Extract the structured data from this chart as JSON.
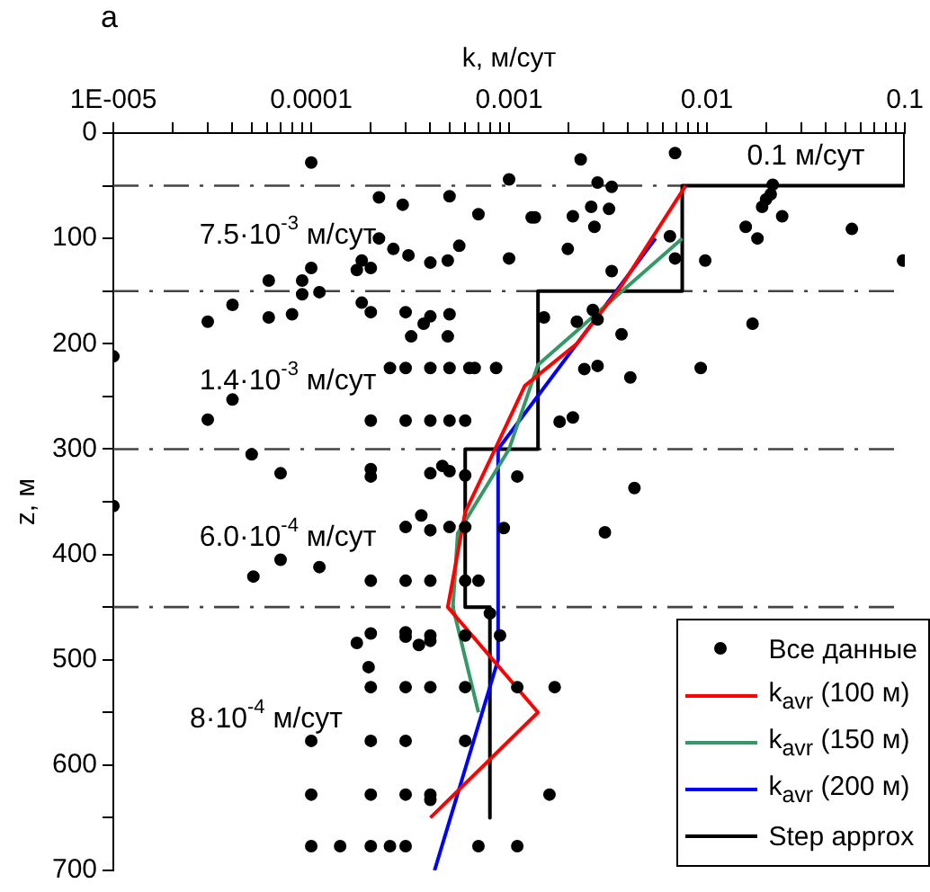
{
  "chart_data": {
    "type": "scatter",
    "title": "а",
    "xlabel": "k, м/сут",
    "ylabel": "z, м",
    "xlim": [
      1e-05,
      0.1
    ],
    "ylim": [
      700,
      0
    ],
    "log": "x",
    "grid": false,
    "legend": "bottom right",
    "xticks": [
      {
        "value": 1e-05,
        "label": "1E-005"
      },
      {
        "value": 2e-05,
        "label": null
      },
      {
        "value": 3e-05,
        "label": null
      },
      {
        "value": 4e-05,
        "label": null
      },
      {
        "value": 5e-05,
        "label": null
      },
      {
        "value": 6e-05,
        "label": null
      },
      {
        "value": 7e-05,
        "label": null
      },
      {
        "value": 8e-05,
        "label": null
      },
      {
        "value": 9e-05,
        "label": null
      },
      0.0001,
      {
        "value": 0.0002,
        "label": null
      },
      {
        "value": 0.0003,
        "label": null
      },
      {
        "value": 0.0004,
        "label": null
      },
      {
        "value": 0.0005,
        "label": null
      },
      {
        "value": 0.0006,
        "label": null
      },
      {
        "value": 0.0007,
        "label": null
      },
      {
        "value": 0.0008,
        "label": null
      },
      {
        "value": 0.0009,
        "label": null
      },
      0.001,
      {
        "value": 0.002,
        "label": null
      },
      {
        "value": 0.003,
        "label": null
      },
      {
        "value": 0.004,
        "label": null
      },
      {
        "value": 0.005,
        "label": null
      },
      {
        "value": 0.006,
        "label": null
      },
      {
        "value": 0.007,
        "label": null
      },
      {
        "value": 0.008,
        "label": null
      },
      {
        "value": 0.009,
        "label": null
      },
      0.01,
      {
        "value": 0.02,
        "label": null
      },
      {
        "value": 0.03,
        "label": null
      },
      {
        "value": 0.04,
        "label": null
      },
      {
        "value": 0.05,
        "label": null
      },
      {
        "value": 0.06,
        "label": null
      },
      {
        "value": 0.07,
        "label": null
      },
      {
        "value": 0.08,
        "label": null
      },
      {
        "value": 0.09,
        "label": null
      },
      0.1
    ],
    "yticks": [
      0,
      {
        "value": 50,
        "label": null
      },
      100,
      {
        "value": 150,
        "label": null
      },
      200,
      {
        "value": 250,
        "label": null
      },
      300,
      {
        "value": 350,
        "label": null
      },
      400,
      {
        "value": 450,
        "label": null
      },
      500,
      {
        "value": 550,
        "label": null
      },
      600,
      {
        "value": 650,
        "label": null
      },
      700
    ],
    "ref_lines": [
      {
        "axis": "y",
        "value": 50,
        "color": "#444444"
      },
      {
        "axis": "y",
        "value": 150,
        "color": "#444444"
      },
      {
        "axis": "y",
        "value": 300,
        "color": "#444444"
      },
      {
        "axis": "y",
        "value": 450,
        "color": "#444444"
      }
    ],
    "annotations": [
      "0.1 м/сут",
      "7.5·10$^{-3}$ м/сут",
      "1.4·10$^{-3}$ м/сут",
      "6.0·10$^{-4}$ м/сут",
      "8·10$^{-4}$ м/сут"
    ],
    "series": [
      {
        "name": "Все данные",
        "color": "#000000",
        "marker": "circle",
        "x": [
          0.0001,
          0.001,
          0.00022,
          0.00029,
          0.0005,
          0.0007,
          0.0013,
          0.00135,
          0.00022,
          0.00026,
          0.00031,
          0.0004,
          0.00049,
          0.00056,
          0.001,
          0.00018,
          0.0002,
          0.00017,
          0.0001,
          6.1e-05,
          9e-05,
          9e-05,
          0.00011,
          4e-05,
          3e-05,
          6.1e-05,
          8e-05,
          0.00018,
          0.0002,
          0.0003,
          0.00032,
          0.00037,
          0.0004,
          0.00049,
          0.0005,
          0.0015,
          1e-05,
          0.00025,
          0.0003,
          0.0004,
          0.0005,
          0.00063,
          0.00067,
          0.00086,
          4e-05,
          3e-05,
          0.0002,
          0.0003,
          0.0004,
          0.0005,
          0.0006,
          5e-05,
          7e-05,
          0.0002,
          0.0002,
          0.0004,
          0.00046,
          0.0005,
          0.0006,
          0.0011,
          1e-05,
          0.0023,
          0.0069,
          0.0028,
          0.0033,
          0.0215,
          0.021,
          0.0199,
          0.019,
          0.024,
          0.0021,
          0.0026,
          0.0032,
          0.0027,
          0.0157,
          0.018,
          0.054,
          0.098,
          0.00198,
          0.0065,
          0.0069,
          0.0098,
          0.0033,
          0.0022,
          0.0028,
          0.00265,
          0.0037,
          0.017,
          0.0024,
          0.0028,
          0.0041,
          0.0093,
          0.0018,
          0.0021,
          0.0043,
          0.00305,
          0.00036,
          0.0003,
          0.0004,
          0.0005,
          0.0006,
          0.00094,
          5.1e-05,
          7e-05,
          0.00011,
          0.0002,
          0.0003,
          0.0004,
          0.0006,
          0.0007,
          0.0008,
          0.0002,
          0.0003,
          0.0003,
          0.0004,
          0.0004,
          0.0006,
          0.0009,
          0.00017,
          0.00035,
          0.000195,
          0.0002,
          0.0003,
          0.0004,
          0.0006,
          0.0011,
          0.0017,
          0.0001,
          0.0002,
          0.0003,
          0.0006,
          0.0001,
          0.0002,
          0.0003,
          0.0004,
          0.0004,
          0.0016,
          0.0001,
          0.00014,
          0.0002,
          0.00025,
          0.0003,
          0.0007,
          0.0011
        ],
        "values": [
          28,
          44,
          61,
          68,
          60,
          77,
          80,
          80,
          100,
          110,
          116,
          123,
          121,
          107,
          119,
          121,
          128,
          130,
          128,
          140,
          140,
          153,
          151,
          163,
          179,
          175,
          172,
          161,
          170,
          170,
          193,
          181,
          174,
          193,
          172,
          175,
          212,
          223,
          223,
          223,
          223,
          223,
          223,
          223,
          253,
          272,
          273,
          273,
          273,
          273,
          273,
          305,
          323,
          319,
          326,
          323,
          316,
          321,
          325,
          326,
          354,
          25,
          19,
          47,
          51,
          49,
          58,
          63,
          70,
          79,
          79,
          70,
          72,
          89,
          89,
          100,
          91,
          121,
          110,
          98,
          119,
          121,
          131,
          179,
          177,
          168,
          191,
          181,
          224,
          221,
          232,
          223,
          274,
          270,
          337,
          379,
          363,
          374,
          377,
          374,
          374,
          375,
          421,
          405,
          412,
          425,
          425,
          425,
          425,
          425,
          456,
          475,
          474,
          478,
          477,
          482,
          477,
          477,
          484,
          486,
          507,
          526,
          526,
          526,
          526,
          526,
          526,
          577,
          577,
          577,
          577,
          628,
          628,
          628,
          628,
          633,
          628,
          677,
          677,
          677,
          677,
          677,
          677,
          677
        ]
      },
      {
        "type": "line",
        "name": "k$_{avr}$ (100 м)",
        "color": "#ff0000",
        "marker": "none",
        "x": [
          0.0078,
          0.0037,
          0.0022,
          0.0012,
          0.00085,
          0.0006,
          0.00049,
          0.0014,
          0.0004
        ],
        "values": [
          50,
          145,
          200,
          240,
          300,
          360,
          450,
          550,
          650
        ]
      },
      {
        "type": "line",
        "name": "k$_{avr}$ (150 м)",
        "color": "#339966",
        "marker": "none",
        "x": [
          0.0075,
          0.0014,
          0.001,
          0.00055,
          0.00052,
          0.0007
        ],
        "values": [
          100,
          220,
          300,
          380,
          450,
          550
        ]
      },
      {
        "type": "line",
        "name": "k$_{avr}$ (200 м)",
        "color": "#0000ff",
        "marker": "none",
        "x": [
          0.0055,
          0.00088,
          0.00088,
          0.00042
        ],
        "values": [
          100,
          300,
          500,
          700
        ]
      },
      {
        "type": "line",
        "name": "Step approx",
        "color": "#000000",
        "marker": "none",
        "x": [
          0.1,
          0.1,
          0.0075,
          0.0075,
          0.0014,
          0.0014,
          0.0006,
          0.0006,
          0.0008,
          0.0008
        ],
        "values": [
          0,
          50,
          50,
          150,
          150,
          300,
          300,
          450,
          450,
          650
        ]
      }
    ]
  }
}
